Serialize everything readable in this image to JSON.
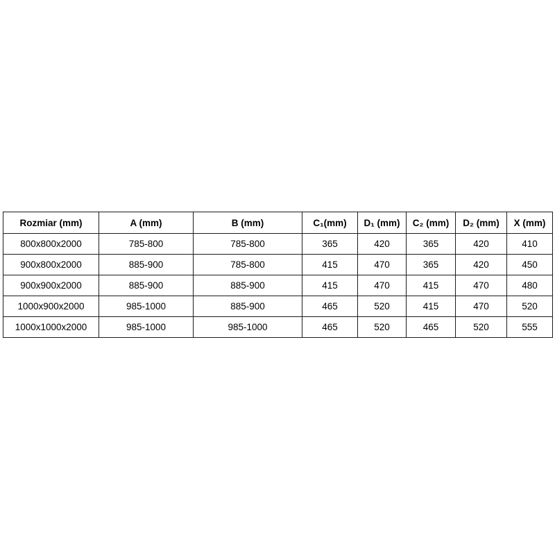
{
  "chart_data": {
    "type": "table",
    "title": "",
    "columns": [
      "Rozmiar (mm)",
      "A (mm)",
      "B (mm)",
      "C₁(mm)",
      "D₁ (mm)",
      "C₂ (mm)",
      "D₂ (mm)",
      "X (mm)"
    ],
    "rows": [
      [
        "800x800x2000",
        "785-800",
        "785-800",
        "365",
        "420",
        "365",
        "420",
        "410"
      ],
      [
        "900x800x2000",
        "885-900",
        "785-800",
        "415",
        "470",
        "365",
        "420",
        "450"
      ],
      [
        "900x900x2000",
        "885-900",
        "885-900",
        "415",
        "470",
        "415",
        "470",
        "480"
      ],
      [
        "1000x900x2000",
        "985-1000",
        "885-900",
        "465",
        "520",
        "415",
        "470",
        "520"
      ],
      [
        "1000x1000x2000",
        "985-1000",
        "985-1000",
        "465",
        "520",
        "465",
        "520",
        "555"
      ]
    ],
    "layout": {
      "grid": true,
      "border_color": "#1b1b1b",
      "background": "#ffffff",
      "text_color": "#000000",
      "header_bold": true
    }
  }
}
